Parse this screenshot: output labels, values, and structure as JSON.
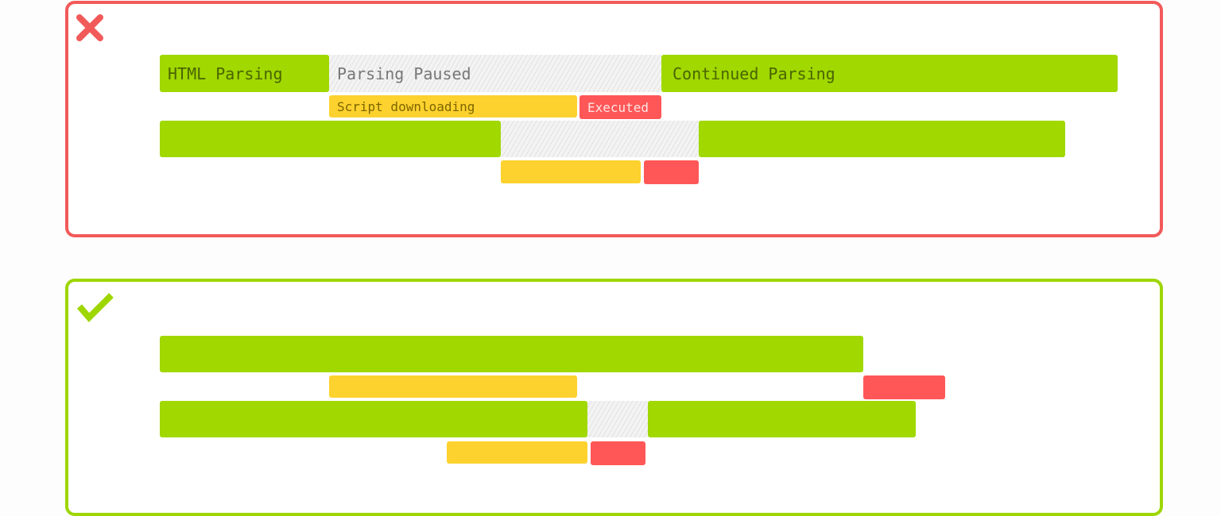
{
  "blocking_panel": {
    "status_icon": "x-mark-icon",
    "status_color": "#f25a5a",
    "labels": {
      "html_parsing": "HTML Parsing",
      "parsing_paused": "Parsing Paused",
      "continued_parsing": "Continued Parsing",
      "script_downloading": "Script downloading",
      "executed": "Executed"
    }
  },
  "nonblocking_panel": {
    "status_icon": "checkmark-icon",
    "status_color": "#9ed600"
  },
  "legend_colors": {
    "parsing": "#a0d800",
    "downloading": "#fdd22e",
    "executing": "#ff5757",
    "paused": "hatched gray"
  }
}
